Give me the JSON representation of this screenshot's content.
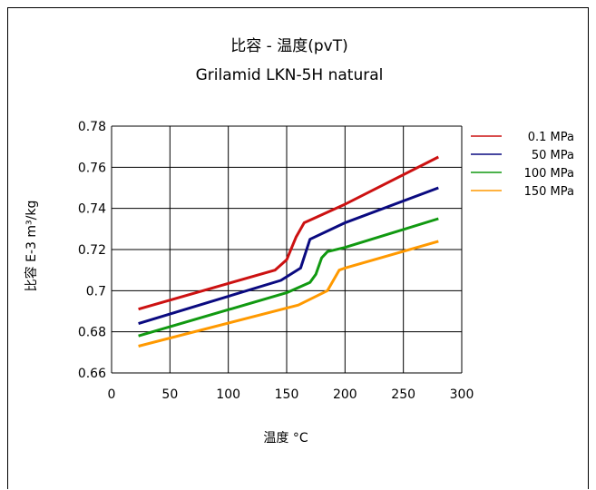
{
  "chart_data": {
    "type": "line",
    "title": "比容 - 温度(pvT)",
    "subtitle": "Grilamid LKN-5H natural",
    "xlabel": "温度 °C",
    "ylabel": "比容 E-3 m³/kg",
    "xlim": [
      0,
      300
    ],
    "ylim": [
      0.66,
      0.78
    ],
    "xticks": [
      0,
      50,
      100,
      150,
      200,
      250,
      300
    ],
    "xtick_labels": [
      "0",
      "50",
      "100",
      "150",
      "200",
      "250",
      "300"
    ],
    "yticks": [
      0.66,
      0.68,
      0.7,
      0.72,
      0.74,
      0.76,
      0.78
    ],
    "ytick_labels": [
      "0.66",
      "0.68",
      "0.7",
      "0.72",
      "0.74",
      "0.76",
      "0.78"
    ],
    "grid": true,
    "legend_position": "right",
    "series": [
      {
        "name": "0.1 MPa",
        "color": "#cc1111",
        "points": [
          [
            23,
            0.691
          ],
          [
            140,
            0.71
          ],
          [
            150,
            0.715
          ],
          [
            158,
            0.726
          ],
          [
            165,
            0.733
          ],
          [
            200,
            0.742
          ],
          [
            280,
            0.765
          ]
        ]
      },
      {
        "name": "50 MPa",
        "color": "#0a0a80",
        "points": [
          [
            23,
            0.684
          ],
          [
            145,
            0.705
          ],
          [
            162,
            0.711
          ],
          [
            170,
            0.725
          ],
          [
            200,
            0.733
          ],
          [
            280,
            0.75
          ]
        ]
      },
      {
        "name": "100 MPa",
        "color": "#119911",
        "points": [
          [
            23,
            0.678
          ],
          [
            150,
            0.699
          ],
          [
            170,
            0.704
          ],
          [
            175,
            0.708
          ],
          [
            180,
            0.716
          ],
          [
            185,
            0.719
          ],
          [
            200,
            0.721
          ],
          [
            280,
            0.735
          ]
        ]
      },
      {
        "name": "150 MPa",
        "color": "#ff9900",
        "points": [
          [
            23,
            0.673
          ],
          [
            160,
            0.693
          ],
          [
            185,
            0.7
          ],
          [
            195,
            0.71
          ],
          [
            200,
            0.711
          ],
          [
            280,
            0.724
          ]
        ]
      }
    ]
  }
}
